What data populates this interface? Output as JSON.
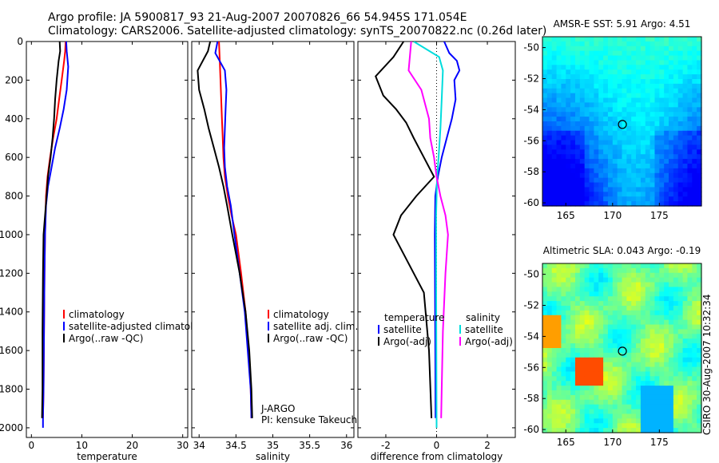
{
  "header": {
    "title_line1": "Argo profile: JA 5900817_93 21-Aug-2007 20070826_66 54.945S 171.054E",
    "title_line2": "Climatology: CARS2006. Satellite-adjusted climatology: synTS_20070822.nc (0.26d later)"
  },
  "side_label": "CSIRO 30-Aug-2007 10:32:34",
  "colors": {
    "climatology": "#ff0000",
    "satellite": "#0000ff",
    "argo": "#000000",
    "cyan": "#00dddd",
    "magenta": "#ff00ff"
  },
  "chart_data": [
    {
      "type": "line",
      "xlabel": "temperature",
      "xlim": [
        -1,
        31
      ],
      "ylim": [
        0,
        2050
      ],
      "y_reversed": true,
      "x_ticks": [
        "0",
        "10",
        "20",
        "30"
      ],
      "y_ticks": [
        "0",
        "200",
        "400",
        "600",
        "800",
        "1000",
        "1200",
        "1400",
        "1600",
        "1800",
        "2000"
      ],
      "legend": [
        "climatology",
        "satellite-adjusted climatology",
        "Argo(..raw -QC)"
      ],
      "series": [
        {
          "name": "climatology",
          "color": "#ff0000",
          "x": [
            6.8,
            6.7,
            6.5,
            6.0,
            5.5,
            5.0,
            4.3,
            3.7,
            3.2,
            2.9,
            2.7,
            2.6,
            2.5,
            2.4,
            2.3
          ],
          "y": [
            0,
            50,
            100,
            200,
            300,
            400,
            500,
            600,
            700,
            800,
            1000,
            1200,
            1500,
            1800,
            1950
          ]
        },
        {
          "name": "satellite-adjusted climatology",
          "color": "#0000ff",
          "x": [
            6.9,
            7.0,
            7.3,
            7.0,
            6.4,
            5.6,
            4.7,
            4.0,
            3.3,
            2.9,
            2.7,
            2.6,
            2.5,
            2.4,
            2.3,
            2.3
          ],
          "y": [
            0,
            50,
            130,
            250,
            350,
            450,
            550,
            650,
            750,
            850,
            1000,
            1200,
            1500,
            1800,
            1950,
            2000
          ]
        },
        {
          "name": "Argo(..raw -QC)",
          "color": "#000000",
          "x": [
            5.6,
            5.7,
            5.4,
            5.0,
            4.7,
            4.5,
            4.2,
            3.8,
            3.3,
            3.0,
            2.7,
            2.4,
            2.3,
            2.2,
            2.2,
            2.1
          ],
          "y": [
            0,
            50,
            100,
            200,
            300,
            400,
            500,
            600,
            700,
            800,
            900,
            1000,
            1200,
            1500,
            1800,
            1950
          ]
        }
      ]
    },
    {
      "type": "line",
      "xlabel": "salinity",
      "xlim": [
        33.9,
        36.1
      ],
      "ylim": [
        0,
        2050
      ],
      "y_reversed": true,
      "x_ticks": [
        "34",
        "34.5",
        "35",
        "35.5",
        "36"
      ],
      "legend": [
        "climatology",
        "satellite adj. clim.",
        "Argo(..raw -QC)"
      ],
      "annotations": [
        "J-ARGO",
        "PI: kensuke Takeuchi"
      ],
      "series": [
        {
          "name": "climatology",
          "color": "#ff0000",
          "x": [
            34.27,
            34.28,
            34.29,
            34.3,
            34.31,
            34.32,
            34.33,
            34.35,
            34.39,
            34.44,
            34.5,
            34.57,
            34.63,
            34.67,
            34.7,
            34.71
          ],
          "y": [
            0,
            100,
            200,
            300,
            400,
            500,
            600,
            700,
            800,
            900,
            1000,
            1200,
            1400,
            1600,
            1800,
            1950
          ]
        },
        {
          "name": "satellite adj. clim.",
          "color": "#0000ff",
          "x": [
            34.25,
            34.22,
            34.35,
            34.37,
            34.36,
            34.35,
            34.34,
            34.35,
            34.38,
            34.43,
            34.48,
            34.55,
            34.62,
            34.66,
            34.7,
            34.71
          ],
          "y": [
            0,
            60,
            150,
            250,
            350,
            450,
            550,
            650,
            750,
            850,
            1000,
            1200,
            1400,
            1600,
            1800,
            1950
          ]
        },
        {
          "name": "Argo(..raw -QC)",
          "color": "#000000",
          "x": [
            34.15,
            34.12,
            33.98,
            34.0,
            34.07,
            34.13,
            34.2,
            34.27,
            34.33,
            34.38,
            34.45,
            34.55,
            34.63,
            34.68,
            34.71,
            34.72
          ],
          "y": [
            0,
            50,
            150,
            250,
            350,
            450,
            550,
            650,
            750,
            850,
            1000,
            1200,
            1400,
            1600,
            1800,
            1950
          ]
        }
      ]
    },
    {
      "type": "line",
      "xlabel": "difference from climatology",
      "xlim": [
        -3.1,
        3.1
      ],
      "ylim": [
        0,
        2050
      ],
      "y_reversed": true,
      "x_ticks": [
        "-2",
        "0",
        "2"
      ],
      "legend_headers": [
        "temperature",
        "salinity"
      ],
      "legend": [
        "satellite",
        "Argo(-adj)",
        "satellite",
        "Argo(-adj)"
      ],
      "series": [
        {
          "name": "temperature satellite",
          "color": "#0000ff",
          "x": [
            0.3,
            0.5,
            0.8,
            0.9,
            0.7,
            0.75,
            0.6,
            0.4,
            0.2,
            0.05,
            -0.05,
            -0.07,
            -0.06,
            -0.05,
            -0.04
          ],
          "y": [
            0,
            60,
            100,
            150,
            200,
            300,
            400,
            500,
            600,
            700,
            800,
            1000,
            1300,
            1600,
            1950
          ]
        },
        {
          "name": "temperature Argo(-adj)",
          "color": "#000000",
          "x": [
            -1.3,
            -1.7,
            -2.4,
            -2.1,
            -1.6,
            -1.2,
            -0.9,
            -0.5,
            -0.1,
            -0.8,
            -1.4,
            -1.7,
            -0.5,
            -0.3,
            -0.2
          ],
          "y": [
            0,
            80,
            180,
            280,
            350,
            420,
            500,
            600,
            700,
            800,
            900,
            1000,
            1300,
            1600,
            1950
          ]
        },
        {
          "name": "salinity satellite",
          "color": "#00dddd",
          "x": [
            -0.9,
            0.1,
            0.25,
            0.2,
            0.15,
            0.08,
            0.02,
            -0.02,
            -0.02,
            -0.01,
            0.0
          ],
          "y": [
            0,
            80,
            150,
            300,
            450,
            600,
            700,
            900,
            1200,
            1600,
            2000
          ]
        },
        {
          "name": "salinity Argo(-adj)",
          "color": "#ff00ff",
          "x": [
            -1.0,
            -1.1,
            -0.6,
            -0.3,
            -0.25,
            -0.1,
            0.0,
            0.15,
            0.35,
            0.45,
            0.35,
            0.25,
            0.2,
            0.18
          ],
          "y": [
            0,
            150,
            250,
            400,
            500,
            600,
            700,
            800,
            900,
            1000,
            1200,
            1500,
            1800,
            1950
          ]
        }
      ]
    },
    {
      "type": "heatmap",
      "title": "AMSR-E SST: 5.91  Argo: 4.51",
      "xlim": [
        162.5,
        179.5
      ],
      "ylim": [
        -60.2,
        -49.3
      ],
      "x_ticks": [
        "165",
        "170",
        "175"
      ],
      "y_ticks": [
        "-50",
        "-52",
        "-54",
        "-56",
        "-58",
        "-60"
      ],
      "marker": {
        "lon": 171.05,
        "lat": -54.95
      }
    },
    {
      "type": "heatmap",
      "title": "Altimetric SLA: 0.043  Argo: -0.19",
      "xlim": [
        162.5,
        179.5
      ],
      "ylim": [
        -60.2,
        -49.3
      ],
      "x_ticks": [
        "165",
        "170",
        "175"
      ],
      "y_ticks": [
        "-50",
        "-52",
        "-54",
        "-56",
        "-58",
        "-60"
      ],
      "marker": {
        "lon": 171.05,
        "lat": -54.95
      }
    }
  ]
}
